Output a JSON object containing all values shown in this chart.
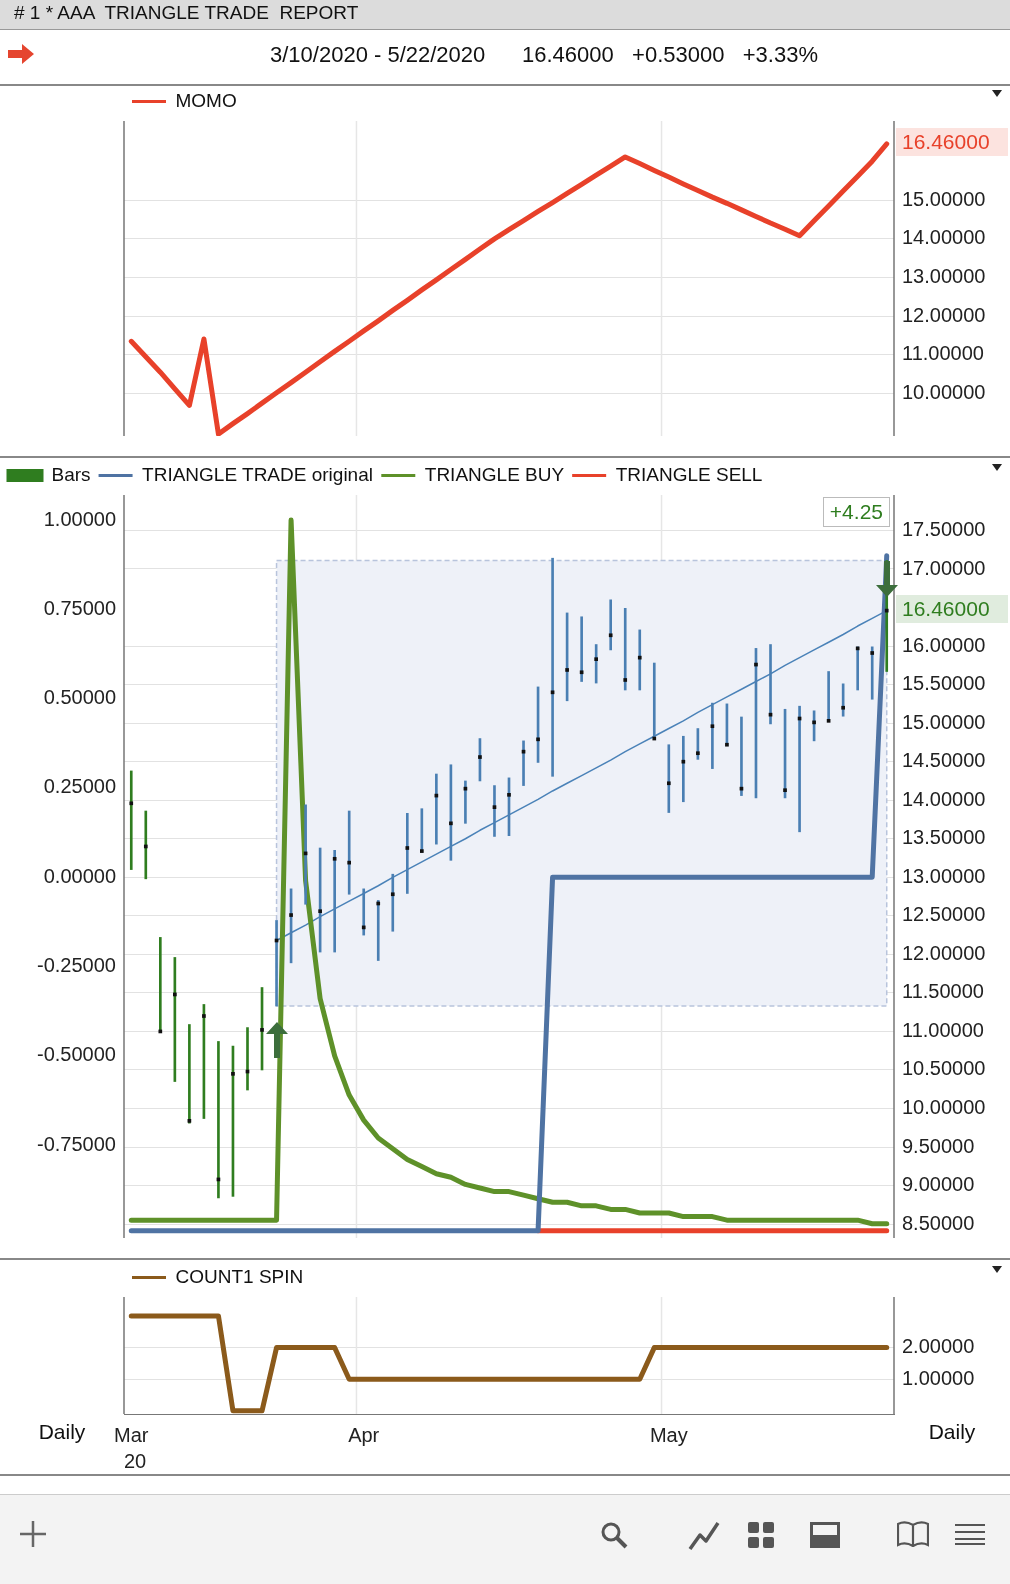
{
  "chart_data": [
    {
      "type": "line",
      "title": "# 1 * AAA  TRIANGLE TRADE  REPORT",
      "subtitle": "3/10/2020 - 5/22/2020      16.46000   +0.53000   +3.33%",
      "categories": [
        null,
        null,
        null,
        null,
        null,
        null,
        null,
        null,
        null,
        null,
        null,
        null,
        null,
        null,
        null,
        null,
        null,
        null,
        null,
        null,
        null,
        null,
        null,
        null,
        null,
        null,
        null,
        null,
        null,
        null,
        null,
        null,
        null,
        null,
        null,
        null,
        null,
        null,
        null,
        null,
        null,
        null,
        null,
        null,
        null,
        null,
        null,
        null,
        null,
        null,
        null,
        null,
        null
      ],
      "series": [
        {
          "name": "MOMO",
          "color": "#e8412a",
          "values": [
            11.35,
            10.95,
            10.55,
            10.12,
            9.69,
            11.41,
            8.95,
            9.22,
            9.48,
            9.75,
            10.02,
            10.28,
            10.55,
            10.82,
            11.09,
            11.35,
            11.62,
            11.88,
            12.15,
            12.41,
            12.68,
            12.94,
            13.21,
            13.47,
            13.74,
            14.0,
            14.24,
            14.47,
            14.71,
            14.94,
            15.18,
            15.41,
            15.65,
            15.88,
            16.12,
            15.95,
            15.77,
            15.6,
            15.42,
            15.25,
            15.08,
            14.92,
            14.75,
            14.58,
            14.41,
            14.25,
            14.08,
            14.47,
            14.85,
            15.24,
            15.62,
            16.01,
            16.46
          ]
        }
      ],
      "ylim": [
        8.9,
        17.05
      ],
      "yticks": [
        {
          "value": 10,
          "label": "10.00000"
        },
        {
          "value": 11,
          "label": "11.00000"
        },
        {
          "value": 12,
          "label": "12.00000"
        },
        {
          "value": 13,
          "label": "13.00000"
        },
        {
          "value": 14,
          "label": "14.00000"
        },
        {
          "value": 15,
          "label": "15.00000"
        }
      ],
      "grid": "y",
      "legend": "top left",
      "tick_labels": "y",
      "annotations": [
        "16.46000"
      ]
    },
    {
      "type": "line",
      "categories": [
        null,
        null,
        null,
        null,
        null,
        null,
        null,
        null,
        null,
        null,
        null,
        null,
        null,
        null,
        null,
        null,
        null,
        null,
        null,
        null,
        null,
        null,
        null,
        null,
        null,
        null,
        null,
        null,
        null,
        null,
        null,
        null,
        null,
        null,
        null,
        null,
        null,
        null,
        null,
        null,
        null,
        null,
        null,
        null,
        null,
        null,
        null,
        null,
        null,
        null,
        null,
        null,
        null
      ],
      "series": [
        {
          "name": "Bars",
          "type": "bar",
          "axis": "y2",
          "base": [
            13.1,
            12.98,
            10.99,
            10.35,
            9.81,
            9.87,
            8.84,
            8.86,
            10.24,
            10.5,
            11.33,
            11.89,
            12.65,
            12.03,
            12.03,
            12.78,
            12.25,
            11.92,
            12.3,
            12.79,
            13.33,
            13.43,
            13.22,
            13.7,
            14.25,
            13.53,
            13.54,
            14.19,
            14.49,
            14.31,
            15.29,
            15.54,
            15.52,
            15.95,
            15.43,
            15.43,
            14.8,
            13.84,
            13.98,
            14.53,
            14.41,
            14.71,
            14.06,
            14.03,
            14.99,
            14.03,
            13.59,
            14.77,
            15.02,
            15.09,
            15.43,
            15.31,
            15.67
          ],
          "values": [
            1.28,
            0.88,
            1.23,
            1.61,
            1.28,
            1.48,
            2.03,
            1.95,
            0.81,
            1.07,
            1.11,
            0.96,
            1.29,
            1.35,
            1.32,
            1.08,
            0.6,
            0.78,
            0.74,
            1.04,
            0.56,
            0.91,
            1.24,
            0.55,
            0.55,
            0.66,
            0.75,
            0.58,
            0.98,
            2.83,
            1.14,
            0.84,
            0.5,
            0.65,
            1.06,
            0.78,
            0.98,
            0.88,
            0.85,
            0.4,
            0.85,
            0.54,
            1.02,
            1.94,
            1.03,
            1.15,
            1.63,
            0.39,
            0.65,
            0.42,
            0.56,
            0.68,
            1.44
          ],
          "colors": [
            "#2f7d1f",
            "#2f7d1f",
            "#2f7d1f",
            "#2f7d1f",
            "#2f7d1f",
            "#2f7d1f",
            "#2f7d1f",
            "#2f7d1f",
            "#2f7d1f",
            "#2f7d1f",
            "#4a7fb3",
            "#4a7fb3",
            "#4a7fb3",
            "#4a7fb3",
            "#4a7fb3",
            "#4a7fb3",
            "#4a7fb3",
            "#4a7fb3",
            "#4a7fb3",
            "#4a7fb3",
            "#4a7fb3",
            "#4a7fb3",
            "#4a7fb3",
            "#4a7fb3",
            "#4a7fb3",
            "#4a7fb3",
            "#4a7fb3",
            "#4a7fb3",
            "#4a7fb3",
            "#4a7fb3",
            "#4a7fb3",
            "#4a7fb3",
            "#4a7fb3",
            "#4a7fb3",
            "#4a7fb3",
            "#4a7fb3",
            "#4a7fb3",
            "#4a7fb3",
            "#4a7fb3",
            "#4a7fb3",
            "#4a7fb3",
            "#4a7fb3",
            "#4a7fb3",
            "#4a7fb3",
            "#4a7fb3",
            "#4a7fb3",
            "#4a7fb3",
            "#4a7fb3",
            "#4a7fb3",
            "#4a7fb3",
            "#4a7fb3",
            "#4a7fb3",
            "#2f7d1f"
          ]
        },
        {
          "type": "scatter",
          "axis": "y2",
          "marker": "square",
          "color": "#111111",
          "values": [
            13.96,
            13.4,
            11.0,
            11.48,
            9.84,
            11.2,
            9.08,
            10.45,
            10.48,
            11.02,
            12.18,
            12.51,
            13.31,
            12.56,
            13.24,
            13.19,
            12.35,
            12.66,
            12.78,
            13.38,
            13.34,
            14.06,
            13.7,
            14.15,
            14.56,
            13.91,
            14.07,
            14.63,
            14.79,
            15.4,
            15.69,
            15.66,
            15.83,
            16.14,
            15.56,
            15.85,
            14.8,
            14.22,
            14.5,
            14.61,
            14.96,
            14.72,
            14.15,
            15.76,
            15.11,
            14.13,
            15.06,
            15.01,
            15.03,
            15.2,
            15.97,
            15.91,
            16.46
          ]
        },
        {
          "name": "TRIANGLE TRADE original",
          "color": "#4f73a3",
          "values": [
            -0.99,
            -0.99,
            -0.99,
            -0.99,
            -0.99,
            -0.99,
            -0.99,
            -0.99,
            -0.99,
            -0.99,
            -0.99,
            -0.99,
            -0.99,
            -0.99,
            -0.99,
            -0.99,
            -0.99,
            -0.99,
            -0.99,
            -0.99,
            -0.99,
            -0.99,
            -0.99,
            -0.99,
            -0.99,
            -0.99,
            -0.99,
            -0.99,
            -0.99,
            0.0,
            0.0,
            0.0,
            0.0,
            0.0,
            0.0,
            0.0,
            0.0,
            0.0,
            0.0,
            0.0,
            0.0,
            0.0,
            0.0,
            0.0,
            0.0,
            0.0,
            0.0,
            0.0,
            0.0,
            0.0,
            0.0,
            0.0,
            0.9
          ]
        },
        {
          "name": "TRIANGLE BUY",
          "color": "#5e9129",
          "values": [
            -0.96,
            -0.96,
            -0.96,
            -0.96,
            -0.96,
            -0.96,
            -0.96,
            -0.96,
            -0.96,
            -0.96,
            -0.96,
            1.0,
            -0.01,
            -0.34,
            -0.5,
            -0.61,
            -0.68,
            -0.73,
            -0.76,
            -0.79,
            -0.81,
            -0.83,
            -0.84,
            -0.86,
            -0.87,
            -0.88,
            -0.88,
            -0.89,
            -0.9,
            -0.91,
            -0.91,
            -0.92,
            -0.92,
            -0.93,
            -0.93,
            -0.94,
            -0.94,
            -0.94,
            -0.95,
            -0.95,
            -0.95,
            -0.96,
            -0.96,
            -0.96,
            -0.96,
            -0.96,
            -0.96,
            -0.96,
            -0.96,
            -0.96,
            -0.96,
            -0.97,
            -0.97
          ]
        },
        {
          "name": "TRIANGLE SELL",
          "color": "#e8412a",
          "values": [
            null,
            null,
            null,
            null,
            null,
            null,
            null,
            null,
            null,
            null,
            null,
            null,
            null,
            null,
            null,
            null,
            null,
            null,
            null,
            null,
            null,
            null,
            null,
            null,
            null,
            null,
            null,
            null,
            -0.99,
            -0.99,
            -0.99,
            -0.99,
            -0.99,
            -0.99,
            -0.99,
            -0.99,
            -0.99,
            -0.99,
            -0.99,
            -0.99,
            -0.99,
            -0.99,
            -0.99,
            -0.99,
            -0.99,
            -0.99,
            -0.99,
            -0.99,
            -0.99,
            -0.99,
            -0.99,
            -0.99,
            -0.99
          ]
        },
        {
          "type": "line",
          "color": "#4a82b8",
          "axis": "y2",
          "values": [
            null,
            null,
            null,
            null,
            null,
            null,
            null,
            null,
            null,
            null,
            12.18,
            12.28,
            12.38,
            12.49,
            12.59,
            12.69,
            12.79,
            12.89,
            13.0,
            13.1,
            13.2,
            13.3,
            13.4,
            13.5,
            13.61,
            13.71,
            13.81,
            13.91,
            14.01,
            14.12,
            14.22,
            14.32,
            14.42,
            14.52,
            14.63,
            14.73,
            14.83,
            14.93,
            15.03,
            15.14,
            15.24,
            15.34,
            15.44,
            15.54,
            15.64,
            15.75,
            15.85,
            15.95,
            16.05,
            16.15,
            16.26,
            16.36,
            16.46
          ]
        }
      ],
      "ylim": [
        -1.01,
        1.07
      ],
      "yticks": [
        {
          "value": 1,
          "label": "1.00000"
        },
        {
          "value": 0.75,
          "label": "0.75000"
        },
        {
          "value": 0.5,
          "label": "0.50000"
        },
        {
          "value": 0.25,
          "label": "0.25000"
        },
        {
          "value": 0,
          "label": "0.00000"
        },
        {
          "value": -0.25,
          "label": "-0.25000"
        },
        {
          "value": -0.5,
          "label": "-0.50000"
        },
        {
          "value": -0.75,
          "label": "-0.75000"
        }
      ],
      "y2lim": [
        8.32,
        17.96
      ],
      "y2ticks": [
        {
          "value": 8.5,
          "label": "8.50000"
        },
        {
          "value": 9,
          "label": "9.00000"
        },
        {
          "value": 9.5,
          "label": "9.50000"
        },
        {
          "value": 10,
          "label": "10.00000"
        },
        {
          "value": 10.5,
          "label": "10.50000"
        },
        {
          "value": 11,
          "label": "11.00000"
        },
        {
          "value": 11.5,
          "label": "11.50000"
        },
        {
          "value": 12,
          "label": "12.00000"
        },
        {
          "value": 12.5,
          "label": "12.50000"
        },
        {
          "value": 13,
          "label": "13.00000"
        },
        {
          "value": 13.5,
          "label": "13.50000"
        },
        {
          "value": 14,
          "label": "14.00000"
        },
        {
          "value": 14.5,
          "label": "14.50000"
        },
        {
          "value": 15,
          "label": "15.00000"
        },
        {
          "value": 15.5,
          "label": "15.50000"
        },
        {
          "value": 16,
          "label": "16.00000"
        },
        {
          "value": 17,
          "label": "17.00000"
        },
        {
          "value": 17.5,
          "label": "17.50000"
        }
      ],
      "bands": [
        {
          "axis": "y2",
          "from": 11.33,
          "to": 17.11,
          "color": "#eef1f8"
        }
      ],
      "grid": "y",
      "legend": "top left",
      "tick_labels": "y",
      "annotations": [
        "16.46000",
        "+4.25"
      ]
    },
    {
      "type": "line",
      "categories": [
        "Mar",
        null,
        null,
        null,
        null,
        null,
        null,
        null,
        null,
        null,
        null,
        null,
        null,
        null,
        null,
        null,
        "Apr",
        null,
        null,
        null,
        null,
        null,
        null,
        null,
        null,
        null,
        null,
        null,
        null,
        null,
        null,
        null,
        null,
        null,
        null,
        null,
        null,
        "May",
        null,
        null,
        null,
        null,
        null,
        null,
        null,
        null,
        null,
        null,
        null,
        null,
        null,
        null,
        null
      ],
      "series": [
        {
          "name": "COUNT1 SPIN",
          "color": "#8b5a1b",
          "values": [
            3,
            3,
            3,
            3,
            3,
            3,
            3,
            0,
            0,
            0,
            2,
            2,
            2,
            2,
            2,
            1,
            1,
            1,
            1,
            1,
            1,
            1,
            1,
            1,
            1,
            1,
            1,
            1,
            1,
            1,
            1,
            1,
            1,
            1,
            1,
            1,
            2,
            2,
            2,
            2,
            2,
            2,
            2,
            2,
            2,
            2,
            2,
            2,
            2,
            2,
            2,
            2,
            2
          ]
        }
      ],
      "ylim": [
        -0.1,
        3.6
      ],
      "yticks": [
        {
          "value": 1,
          "label": "1.00000"
        },
        {
          "value": 2,
          "label": "2.00000"
        }
      ],
      "xlabel": "20",
      "grid": "y",
      "legend": "top left",
      "annotations": [
        "Daily",
        "Daily"
      ]
    }
  ]
}
